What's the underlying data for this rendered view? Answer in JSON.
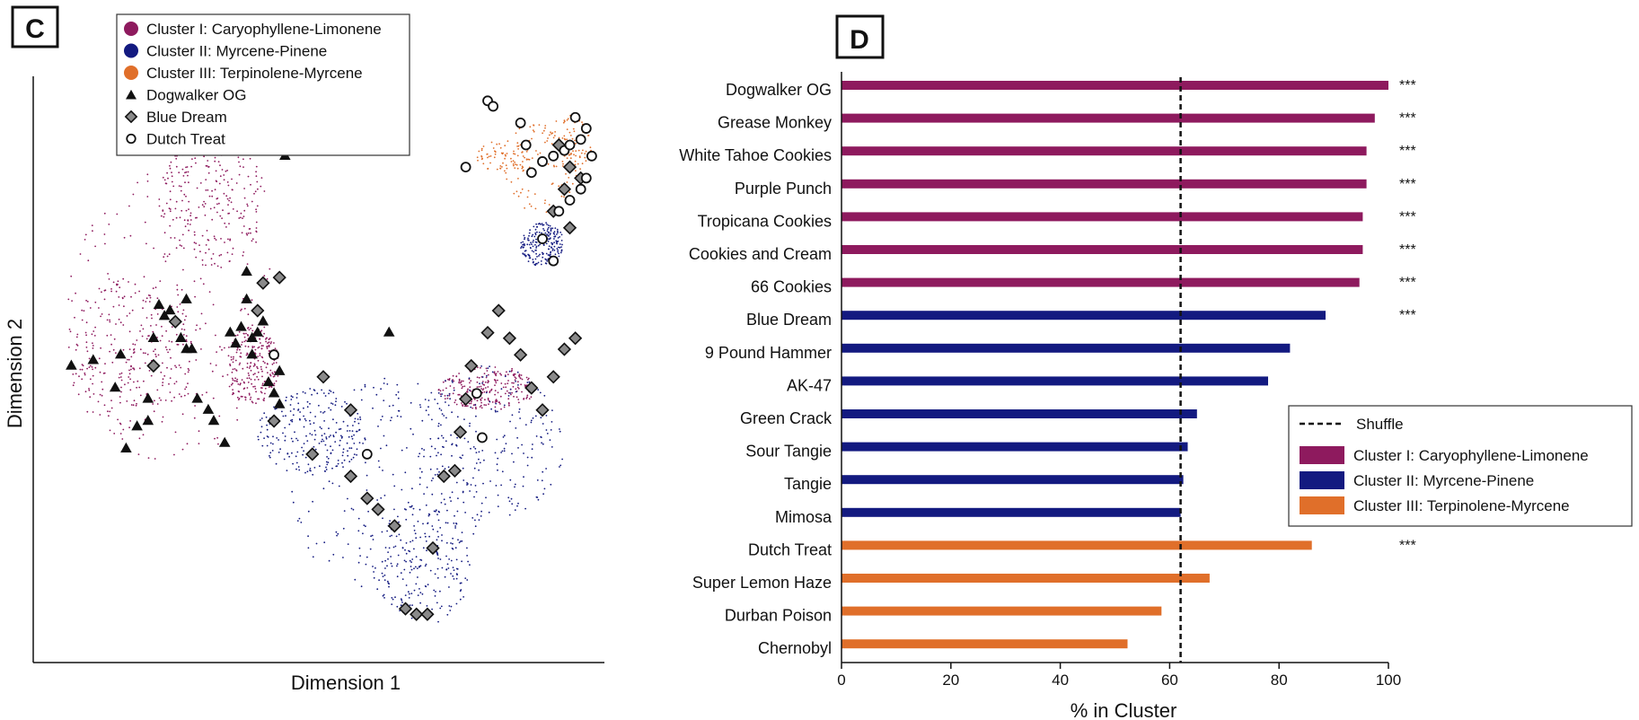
{
  "colors": {
    "cluster1": "#8e1a5e",
    "cluster2": "#131a80",
    "cluster3": "#e06f2a",
    "marker": "#111111",
    "diamond_fill": "#8a8a8a"
  },
  "panel_c": {
    "letter": "C",
    "legend": [
      {
        "label": "Cluster I: Caryophyllene-Limonene",
        "marker": "circle",
        "color": "#8e1a5e"
      },
      {
        "label": "Cluster II: Myrcene-Pinene",
        "marker": "circle",
        "color": "#131a80"
      },
      {
        "label": "Cluster III: Terpinolene-Myrcene",
        "marker": "circle",
        "color": "#e06f2a"
      },
      {
        "label": "Dogwalker OG",
        "marker": "triangle",
        "color": "#111111"
      },
      {
        "label": "Blue Dream",
        "marker": "diamond",
        "color": "#8a8a8a"
      },
      {
        "label": "Dutch Treat",
        "marker": "open-circle",
        "color": "#ffffff"
      }
    ],
    "xlabel": "Dimension 1",
    "ylabel": "Dimension 2"
  },
  "panel_d": {
    "letter": "D",
    "xlabel": "% in Cluster",
    "legend": [
      {
        "label": "Shuffle",
        "style": "dashed-line"
      },
      {
        "label": "Cluster I: Caryophyllene-Limonene",
        "color": "#8e1a5e"
      },
      {
        "label": "Cluster II: Myrcene-Pinene",
        "color": "#131a80"
      },
      {
        "label": "Cluster III: Terpinolene-Myrcene",
        "color": "#e06f2a"
      }
    ]
  },
  "chart_data": [
    {
      "type": "scatter",
      "title": "",
      "xlabel": "Dimension 1",
      "ylabel": "Dimension 2",
      "point_clouds": [
        {
          "name": "Cluster I: Caryophyllene-Limonene",
          "color": "#8e1a5e",
          "approx_points": 3500
        },
        {
          "name": "Cluster II: Myrcene-Pinene",
          "color": "#131a80",
          "approx_points": 3200
        },
        {
          "name": "Cluster III: Terpinolene-Myrcene",
          "color": "#e06f2a",
          "approx_points": 700
        }
      ],
      "series": [
        {
          "name": "Dogwalker OG",
          "marker": "triangle",
          "points": [
            [
              0.04,
              0.5
            ],
            [
              0.08,
              0.51
            ],
            [
              0.12,
              0.46
            ],
            [
              0.13,
              0.52
            ],
            [
              0.16,
              0.39
            ],
            [
              0.14,
              0.35
            ],
            [
              0.18,
              0.4
            ],
            [
              0.18,
              0.44
            ],
            [
              0.19,
              0.55
            ],
            [
              0.2,
              0.61
            ],
            [
              0.21,
              0.59
            ],
            [
              0.22,
              0.6
            ],
            [
              0.25,
              0.62
            ],
            [
              0.24,
              0.55
            ],
            [
              0.25,
              0.53
            ],
            [
              0.26,
              0.53
            ],
            [
              0.27,
              0.44
            ],
            [
              0.29,
              0.42
            ],
            [
              0.3,
              0.4
            ],
            [
              0.32,
              0.36
            ],
            [
              0.34,
              0.54
            ],
            [
              0.33,
              0.56
            ],
            [
              0.35,
              0.57
            ],
            [
              0.37,
              0.52
            ],
            [
              0.37,
              0.55
            ],
            [
              0.38,
              0.56
            ],
            [
              0.39,
              0.58
            ],
            [
              0.36,
              0.67
            ],
            [
              0.36,
              0.62
            ],
            [
              0.4,
              0.47
            ],
            [
              0.42,
              0.43
            ],
            [
              0.42,
              0.49
            ],
            [
              0.41,
              0.45
            ],
            [
              0.43,
              0.88
            ],
            [
              0.62,
              0.56
            ]
          ]
        },
        {
          "name": "Blue Dream",
          "marker": "diamond",
          "points": [
            [
              0.19,
              0.5
            ],
            [
              0.23,
              0.58
            ],
            [
              0.38,
              0.6
            ],
            [
              0.39,
              0.65
            ],
            [
              0.42,
              0.66
            ],
            [
              0.41,
              0.4
            ],
            [
              0.5,
              0.48
            ],
            [
              0.48,
              0.34
            ],
            [
              0.55,
              0.42
            ],
            [
              0.55,
              0.3
            ],
            [
              0.58,
              0.26
            ],
            [
              0.6,
              0.24
            ],
            [
              0.63,
              0.21
            ],
            [
              0.65,
              0.06
            ],
            [
              0.67,
              0.05
            ],
            [
              0.69,
              0.05
            ],
            [
              0.7,
              0.17
            ],
            [
              0.72,
              0.3
            ],
            [
              0.74,
              0.31
            ],
            [
              0.75,
              0.38
            ],
            [
              0.76,
              0.44
            ],
            [
              0.77,
              0.5
            ],
            [
              0.8,
              0.56
            ],
            [
              0.82,
              0.6
            ],
            [
              0.84,
              0.55
            ],
            [
              0.86,
              0.52
            ],
            [
              0.88,
              0.46
            ],
            [
              0.9,
              0.42
            ],
            [
              0.92,
              0.48
            ],
            [
              0.94,
              0.53
            ],
            [
              0.96,
              0.55
            ],
            [
              0.93,
              0.9
            ],
            [
              0.95,
              0.86
            ],
            [
              0.94,
              0.82
            ],
            [
              0.97,
              0.84
            ],
            [
              0.92,
              0.78
            ],
            [
              0.95,
              0.75
            ]
          ]
        },
        {
          "name": "Dutch Treat",
          "marker": "open-circle",
          "points": [
            [
              0.41,
              0.52
            ],
            [
              0.58,
              0.34
            ],
            [
              0.76,
              0.86
            ],
            [
              0.8,
              0.98
            ],
            [
              0.81,
              0.97
            ],
            [
              0.86,
              0.94
            ],
            [
              0.87,
              0.9
            ],
            [
              0.88,
              0.85
            ],
            [
              0.9,
              0.87
            ],
            [
              0.92,
              0.88
            ],
            [
              0.94,
              0.89
            ],
            [
              0.95,
              0.9
            ],
            [
              0.97,
              0.91
            ],
            [
              0.96,
              0.95
            ],
            [
              0.98,
              0.93
            ],
            [
              0.99,
              0.88
            ],
            [
              0.98,
              0.84
            ],
            [
              0.97,
              0.82
            ],
            [
              0.95,
              0.8
            ],
            [
              0.93,
              0.78
            ],
            [
              0.9,
              0.73
            ],
            [
              0.92,
              0.69
            ],
            [
              0.78,
              0.45
            ],
            [
              0.79,
              0.37
            ]
          ]
        }
      ]
    },
    {
      "type": "bar",
      "orientation": "horizontal",
      "title": "",
      "xlabel": "% in Cluster",
      "ylabel": "",
      "xlim": [
        0,
        100
      ],
      "xticks": [
        0,
        20,
        40,
        60,
        80,
        100
      ],
      "reference_line": {
        "name": "Shuffle",
        "value": 62
      },
      "bars": [
        {
          "label": "Dogwalker OG",
          "value": 100,
          "cluster": "Cluster I: Caryophyllene-Limonene",
          "sig": "***"
        },
        {
          "label": "Grease Monkey",
          "value": 97.5,
          "cluster": "Cluster I: Caryophyllene-Limonene",
          "sig": "***"
        },
        {
          "label": "White Tahoe Cookies",
          "value": 96,
          "cluster": "Cluster I: Caryophyllene-Limonene",
          "sig": "***"
        },
        {
          "label": "Purple Punch",
          "value": 96,
          "cluster": "Cluster I: Caryophyllene-Limonene",
          "sig": "***"
        },
        {
          "label": "Tropicana Cookies",
          "value": 95.3,
          "cluster": "Cluster I: Caryophyllene-Limonene",
          "sig": "***"
        },
        {
          "label": "Cookies and Cream",
          "value": 95.3,
          "cluster": "Cluster I: Caryophyllene-Limonene",
          "sig": "***"
        },
        {
          "label": "66 Cookies",
          "value": 94.7,
          "cluster": "Cluster I: Caryophyllene-Limonene",
          "sig": "***"
        },
        {
          "label": "Blue Dream",
          "value": 88.5,
          "cluster": "Cluster II: Myrcene-Pinene",
          "sig": "***"
        },
        {
          "label": "9 Pound Hammer",
          "value": 82,
          "cluster": "Cluster II: Myrcene-Pinene",
          "sig": ""
        },
        {
          "label": "AK-47",
          "value": 78,
          "cluster": "Cluster II: Myrcene-Pinene",
          "sig": ""
        },
        {
          "label": "Green Crack",
          "value": 65,
          "cluster": "Cluster II: Myrcene-Pinene",
          "sig": ""
        },
        {
          "label": "Sour Tangie",
          "value": 63.3,
          "cluster": "Cluster II: Myrcene-Pinene",
          "sig": ""
        },
        {
          "label": "Tangie",
          "value": 62.5,
          "cluster": "Cluster II: Myrcene-Pinene",
          "sig": ""
        },
        {
          "label": "Mimosa",
          "value": 62,
          "cluster": "Cluster II: Myrcene-Pinene",
          "sig": ""
        },
        {
          "label": "Dutch Treat",
          "value": 86,
          "cluster": "Cluster III: Terpinolene-Myrcene",
          "sig": "***"
        },
        {
          "label": "Super Lemon Haze",
          "value": 67.3,
          "cluster": "Cluster III: Terpinolene-Myrcene",
          "sig": ""
        },
        {
          "label": "Durban Poison",
          "value": 58.5,
          "cluster": "Cluster III: Terpinolene-Myrcene",
          "sig": ""
        },
        {
          "label": "Chernobyl",
          "value": 52.3,
          "cluster": "Cluster III: Terpinolene-Myrcene",
          "sig": ""
        }
      ]
    }
  ]
}
